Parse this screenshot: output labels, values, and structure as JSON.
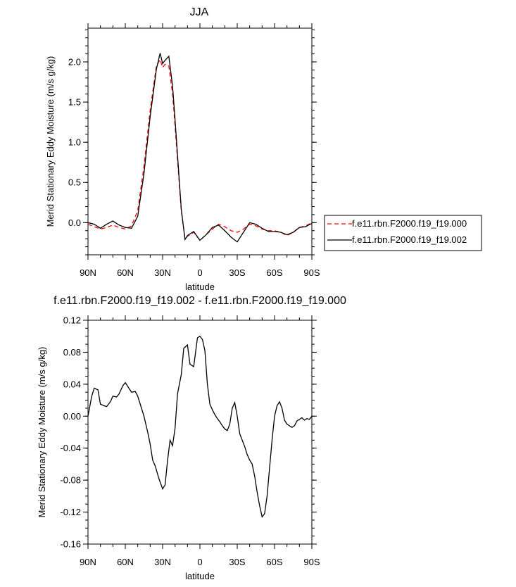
{
  "chart_data": [
    {
      "type": "line",
      "title": "JJA",
      "xlabel": "latitude",
      "ylabel": "Merid Stationary Eddy Moisture (m/s g/kg)",
      "x_ticklabels": [
        "90N",
        "60N",
        "30N",
        "0",
        "30S",
        "60S",
        "90S"
      ],
      "y_ticklabels": [
        "0.0",
        "0.5",
        "1.0",
        "1.5",
        "2.0"
      ],
      "xlim": [
        90,
        -90
      ],
      "ylim": [
        -0.4,
        2.42
      ],
      "legend_position": "right",
      "series": [
        {
          "name": "f.e11.rbn.F2000.f19_f19.000",
          "color": "#ff0000",
          "dash": "dashed",
          "x": [
            90,
            85,
            80,
            75,
            70,
            65,
            60,
            55,
            50,
            45,
            40,
            35,
            32,
            30,
            28,
            25,
            22,
            20,
            15,
            12,
            10,
            5,
            0,
            -5,
            -10,
            -15,
            -20,
            -25,
            -30,
            -35,
            -40,
            -45,
            -50,
            -55,
            -60,
            -65,
            -70,
            -75,
            -80,
            -85,
            -90
          ],
          "y": [
            -0.02,
            -0.05,
            -0.08,
            -0.06,
            -0.03,
            -0.06,
            -0.08,
            -0.04,
            0.15,
            0.7,
            1.4,
            1.95,
            2.03,
            1.93,
            1.97,
            1.95,
            1.6,
            1.2,
            0.15,
            -0.2,
            -0.17,
            -0.12,
            -0.22,
            -0.15,
            -0.08,
            -0.02,
            -0.05,
            -0.1,
            -0.12,
            -0.08,
            -0.02,
            -0.04,
            -0.08,
            -0.1,
            -0.1,
            -0.12,
            -0.16,
            -0.12,
            -0.06,
            -0.04,
            0.0
          ]
        },
        {
          "name": "f.e11.rbn.F2000.f19_f19.002",
          "color": "#000000",
          "dash": "solid",
          "x": [
            90,
            85,
            80,
            75,
            70,
            65,
            60,
            55,
            50,
            45,
            40,
            35,
            32,
            30,
            28,
            25,
            22,
            20,
            15,
            12,
            10,
            5,
            0,
            -5,
            -10,
            -15,
            -20,
            -25,
            -30,
            -35,
            -40,
            -45,
            -50,
            -55,
            -60,
            -65,
            -70,
            -75,
            -80,
            -85,
            -90
          ],
          "y": [
            0.0,
            -0.02,
            -0.07,
            -0.02,
            0.02,
            -0.03,
            -0.06,
            -0.07,
            0.08,
            0.61,
            1.32,
            1.91,
            2.11,
            1.98,
            2.02,
            2.07,
            1.7,
            1.28,
            0.17,
            -0.21,
            -0.16,
            -0.11,
            -0.22,
            -0.15,
            -0.06,
            -0.03,
            -0.1,
            -0.18,
            -0.24,
            -0.12,
            0.0,
            -0.02,
            -0.07,
            -0.11,
            -0.11,
            -0.12,
            -0.15,
            -0.12,
            -0.06,
            -0.05,
            -0.01
          ]
        }
      ]
    },
    {
      "type": "line",
      "title": "f.e11.rbn.F2000.f19_f19.002 - f.e11.rbn.F2000.f19_f19.000",
      "xlabel": "latitude",
      "ylabel": "Merid Stationary Eddy Moisture (m/s g/kg)",
      "x_ticklabels": [
        "90N",
        "60N",
        "30N",
        "0",
        "30S",
        "60S",
        "90S"
      ],
      "y_ticklabels": [
        "0.12",
        "0.08",
        "0.04",
        "0.00",
        "-0.04",
        "-0.08",
        "-0.12",
        "-0.16"
      ],
      "xlim": [
        90,
        -90
      ],
      "ylim": [
        -0.16,
        0.12
      ],
      "series": [
        {
          "color": "#000000",
          "dash": "solid",
          "x": [
            90,
            87,
            85,
            82,
            80,
            77,
            75,
            72,
            70,
            67,
            65,
            62,
            60,
            55,
            52,
            50,
            48,
            45,
            42,
            40,
            38,
            36,
            33,
            30,
            28,
            26,
            24,
            22,
            20,
            18,
            15,
            13,
            10,
            8,
            5,
            2,
            0,
            -2,
            -4,
            -6,
            -8,
            -10,
            -12,
            -14,
            -16,
            -18,
            -20,
            -22,
            -24,
            -26,
            -28,
            -30,
            -32,
            -34,
            -36,
            -38,
            -40,
            -42,
            -44,
            -46,
            -48,
            -50,
            -52,
            -54,
            -56,
            -58,
            -60,
            -62,
            -64,
            -66,
            -68,
            -70,
            -72,
            -74,
            -76,
            -78,
            -80,
            -82,
            -84,
            -86,
            -88,
            -90
          ],
          "y": [
            0.0,
            0.025,
            0.035,
            0.033,
            0.015,
            0.013,
            0.012,
            0.018,
            0.025,
            0.024,
            0.028,
            0.038,
            0.042,
            0.03,
            0.031,
            0.025,
            0.015,
            0.0,
            -0.02,
            -0.035,
            -0.055,
            -0.062,
            -0.078,
            -0.091,
            -0.086,
            -0.055,
            -0.03,
            -0.037,
            -0.015,
            0.028,
            0.052,
            0.085,
            0.089,
            0.065,
            0.062,
            0.098,
            0.1,
            0.096,
            0.082,
            0.04,
            0.015,
            0.008,
            0.002,
            -0.003,
            -0.007,
            -0.012,
            -0.016,
            -0.018,
            -0.01,
            0.01,
            0.017,
            0.0,
            -0.022,
            -0.03,
            -0.038,
            -0.048,
            -0.055,
            -0.06,
            -0.075,
            -0.095,
            -0.112,
            -0.126,
            -0.122,
            -0.1,
            -0.065,
            -0.03,
            0.0,
            0.013,
            0.018,
            0.01,
            -0.005,
            -0.01,
            -0.012,
            -0.014,
            -0.012,
            -0.006,
            -0.004,
            -0.002,
            -0.005,
            -0.003,
            -0.004,
            0.0
          ]
        }
      ]
    }
  ]
}
